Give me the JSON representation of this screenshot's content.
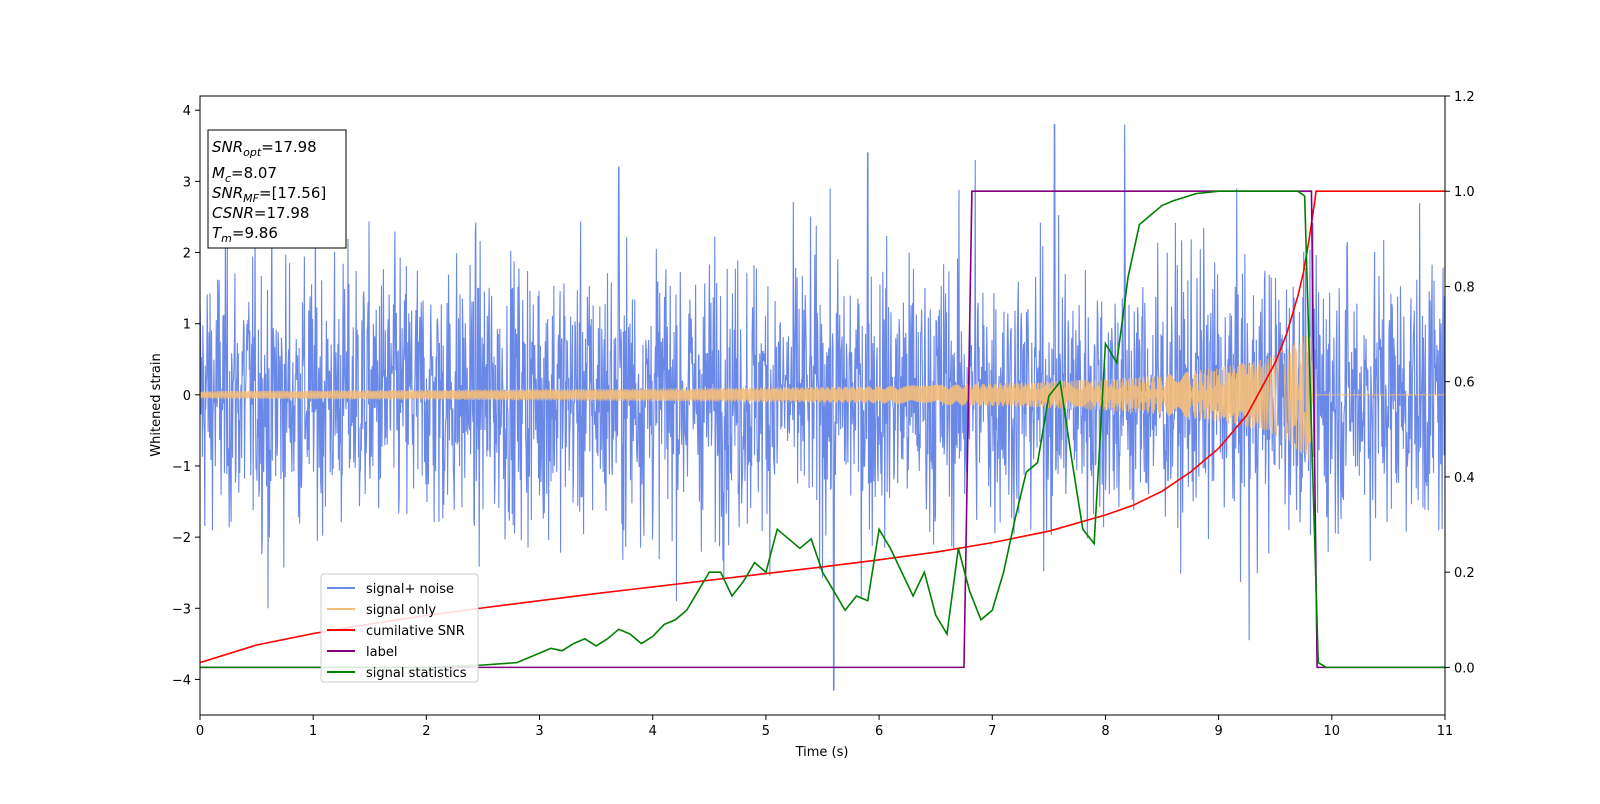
{
  "chart_data": {
    "type": "line",
    "xlabel": "Time (s)",
    "ylabel": "Whitened strain",
    "xlim": [
      0,
      11
    ],
    "ylim": [
      -4.5,
      4.2
    ],
    "y2lim": [
      -0.1,
      1.2
    ],
    "x_ticks": [
      "0",
      "1",
      "2",
      "3",
      "4",
      "5",
      "6",
      "7",
      "8",
      "9",
      "10",
      "11"
    ],
    "y_ticks": [
      "−4",
      "−3",
      "−2",
      "−1",
      "0",
      "1",
      "2",
      "3",
      "4"
    ],
    "y2_ticks": [
      "0.0",
      "0.2",
      "0.4",
      "0.6",
      "0.8",
      "1.0",
      "1.2"
    ],
    "info_box": {
      "snr_opt": {
        "base": "SNR",
        "sub": "opt",
        "value": "=17.98"
      },
      "mc": {
        "base": "M",
        "sub": "c",
        "value": "=8.07"
      },
      "snr_mf": {
        "base": "SNR",
        "sub": "MF",
        "value": "=[17.56]"
      },
      "csnr": {
        "base": "CSNR",
        "value": "=17.98"
      },
      "tm": {
        "base": "T",
        "sub": "m",
        "value": "=9.86"
      }
    },
    "legend": {
      "location": "lower-left",
      "entries": [
        {
          "label": "signal+ noise",
          "color": "#6A88E8"
        },
        {
          "label": "signal only",
          "color": "#F5BE78"
        },
        {
          "label": "cumilative SNR",
          "color": "#FF0000"
        },
        {
          "label": "label",
          "color": "#800080"
        },
        {
          "label": "signal statistics",
          "color": "#008000"
        }
      ]
    },
    "series": [
      {
        "name": "signal+ noise",
        "axis": "left",
        "color": "#6A88E8",
        "description_values": {
          "t_start": 0,
          "t_end": 11,
          "typical_amplitude": 1.0,
          "peaks": [
            [
              0.6,
              -3.0
            ],
            [
              3.7,
              3.2
            ],
            [
              5.6,
              -4.15
            ],
            [
              5.9,
              3.4
            ],
            [
              6.85,
              3.3
            ],
            [
              7.55,
              3.8
            ],
            [
              8.17,
              3.8
            ],
            [
              9.27,
              3.3
            ],
            [
              9.27,
              -3.45
            ]
          ]
        }
      },
      {
        "name": "signal only",
        "axis": "left",
        "color": "#F5BE78",
        "envelope": [
          [
            0,
            0.05
          ],
          [
            2,
            0.07
          ],
          [
            4,
            0.09
          ],
          [
            6,
            0.12
          ],
          [
            7,
            0.16
          ],
          [
            8,
            0.22
          ],
          [
            8.5,
            0.28
          ],
          [
            9,
            0.38
          ],
          [
            9.4,
            0.5
          ],
          [
            9.6,
            0.65
          ],
          [
            9.75,
            0.85
          ],
          [
            9.8,
            1.0
          ],
          [
            9.84,
            0
          ],
          [
            11,
            0
          ]
        ]
      },
      {
        "name": "cumilative SNR",
        "axis": "right",
        "color": "#FF0000",
        "x": [
          0,
          0.5,
          1,
          1.5,
          2,
          2.5,
          3,
          3.5,
          4,
          4.5,
          5,
          5.5,
          6,
          6.5,
          7,
          7.5,
          8,
          8.25,
          8.5,
          8.75,
          9,
          9.25,
          9.5,
          9.6,
          9.7,
          9.75,
          9.8,
          9.85,
          9.86,
          11
        ],
        "y": [
          0.01,
          0.047,
          0.071,
          0.091,
          0.109,
          0.125,
          0.14,
          0.155,
          0.169,
          0.183,
          0.197,
          0.211,
          0.226,
          0.242,
          0.262,
          0.286,
          0.32,
          0.341,
          0.37,
          0.41,
          0.46,
          0.53,
          0.64,
          0.7,
          0.78,
          0.83,
          0.9,
          0.98,
          1.0,
          1.0
        ]
      },
      {
        "name": "label",
        "axis": "right",
        "color": "#800080",
        "x": [
          0,
          6.75,
          6.82,
          9.82,
          9.87,
          11
        ],
        "y": [
          0,
          0,
          1,
          1,
          0,
          0
        ]
      },
      {
        "name": "signal statistics",
        "axis": "right",
        "color": "#008000",
        "x": [
          0,
          0.5,
          1,
          1.5,
          2,
          2.5,
          2.8,
          3,
          3.1,
          3.2,
          3.3,
          3.4,
          3.5,
          3.6,
          3.7,
          3.8,
          3.9,
          4,
          4.1,
          4.2,
          4.3,
          4.4,
          4.5,
          4.6,
          4.7,
          4.8,
          4.9,
          5,
          5.1,
          5.2,
          5.3,
          5.4,
          5.5,
          5.6,
          5.7,
          5.8,
          5.9,
          6,
          6.1,
          6.2,
          6.3,
          6.4,
          6.5,
          6.6,
          6.7,
          6.8,
          6.9,
          7,
          7.1,
          7.2,
          7.3,
          7.4,
          7.5,
          7.6,
          7.7,
          7.8,
          7.9,
          8,
          8.1,
          8.2,
          8.3,
          8.4,
          8.5,
          8.6,
          8.8,
          9,
          9.3,
          9.7,
          9.76,
          9.82,
          9.88,
          9.95,
          10,
          11
        ],
        "y": [
          0,
          0,
          0,
          0,
          0,
          0.005,
          0.01,
          0.03,
          0.04,
          0.035,
          0.05,
          0.06,
          0.045,
          0.06,
          0.08,
          0.07,
          0.05,
          0.065,
          0.09,
          0.1,
          0.12,
          0.16,
          0.2,
          0.2,
          0.15,
          0.18,
          0.22,
          0.2,
          0.29,
          0.27,
          0.25,
          0.27,
          0.2,
          0.16,
          0.12,
          0.15,
          0.14,
          0.29,
          0.25,
          0.2,
          0.15,
          0.2,
          0.11,
          0.07,
          0.25,
          0.16,
          0.1,
          0.12,
          0.2,
          0.31,
          0.41,
          0.43,
          0.57,
          0.6,
          0.44,
          0.29,
          0.26,
          0.68,
          0.64,
          0.82,
          0.93,
          0.95,
          0.97,
          0.98,
          0.995,
          1.0,
          1.0,
          1.0,
          0.99,
          0.5,
          0.01,
          0.0,
          0.0,
          0.0
        ]
      }
    ]
  }
}
